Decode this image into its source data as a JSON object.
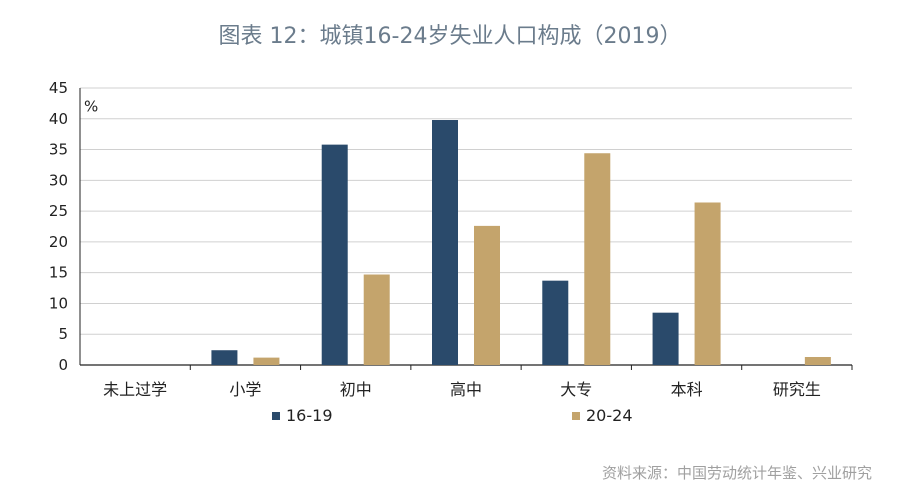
{
  "chart_data": {
    "type": "bar",
    "title": "图表 12：城镇16-24岁失业人口构成（2019）",
    "unit_label": "%",
    "categories": [
      "未上过学",
      "小学",
      "初中",
      "高中",
      "大专",
      "本科",
      "研究生"
    ],
    "series": [
      {
        "name": "16-19",
        "color": "#2a4a6b",
        "values": [
          0,
          2.4,
          35.8,
          39.8,
          13.7,
          8.5,
          0
        ]
      },
      {
        "name": "20-24",
        "color": "#c4a46c",
        "values": [
          0,
          1.2,
          14.7,
          22.6,
          34.4,
          26.4,
          1.3
        ]
      }
    ],
    "ylim": [
      0,
      45
    ],
    "yticks": [
      0,
      5,
      10,
      15,
      20,
      25,
      30,
      35,
      40,
      45
    ],
    "grid": true,
    "legend_position": "bottom"
  },
  "source": "资料来源：中国劳动统计年鉴、兴业研究",
  "colors": {
    "grid": "#d0d0d0",
    "axis": "#222222",
    "text": "#222222"
  }
}
